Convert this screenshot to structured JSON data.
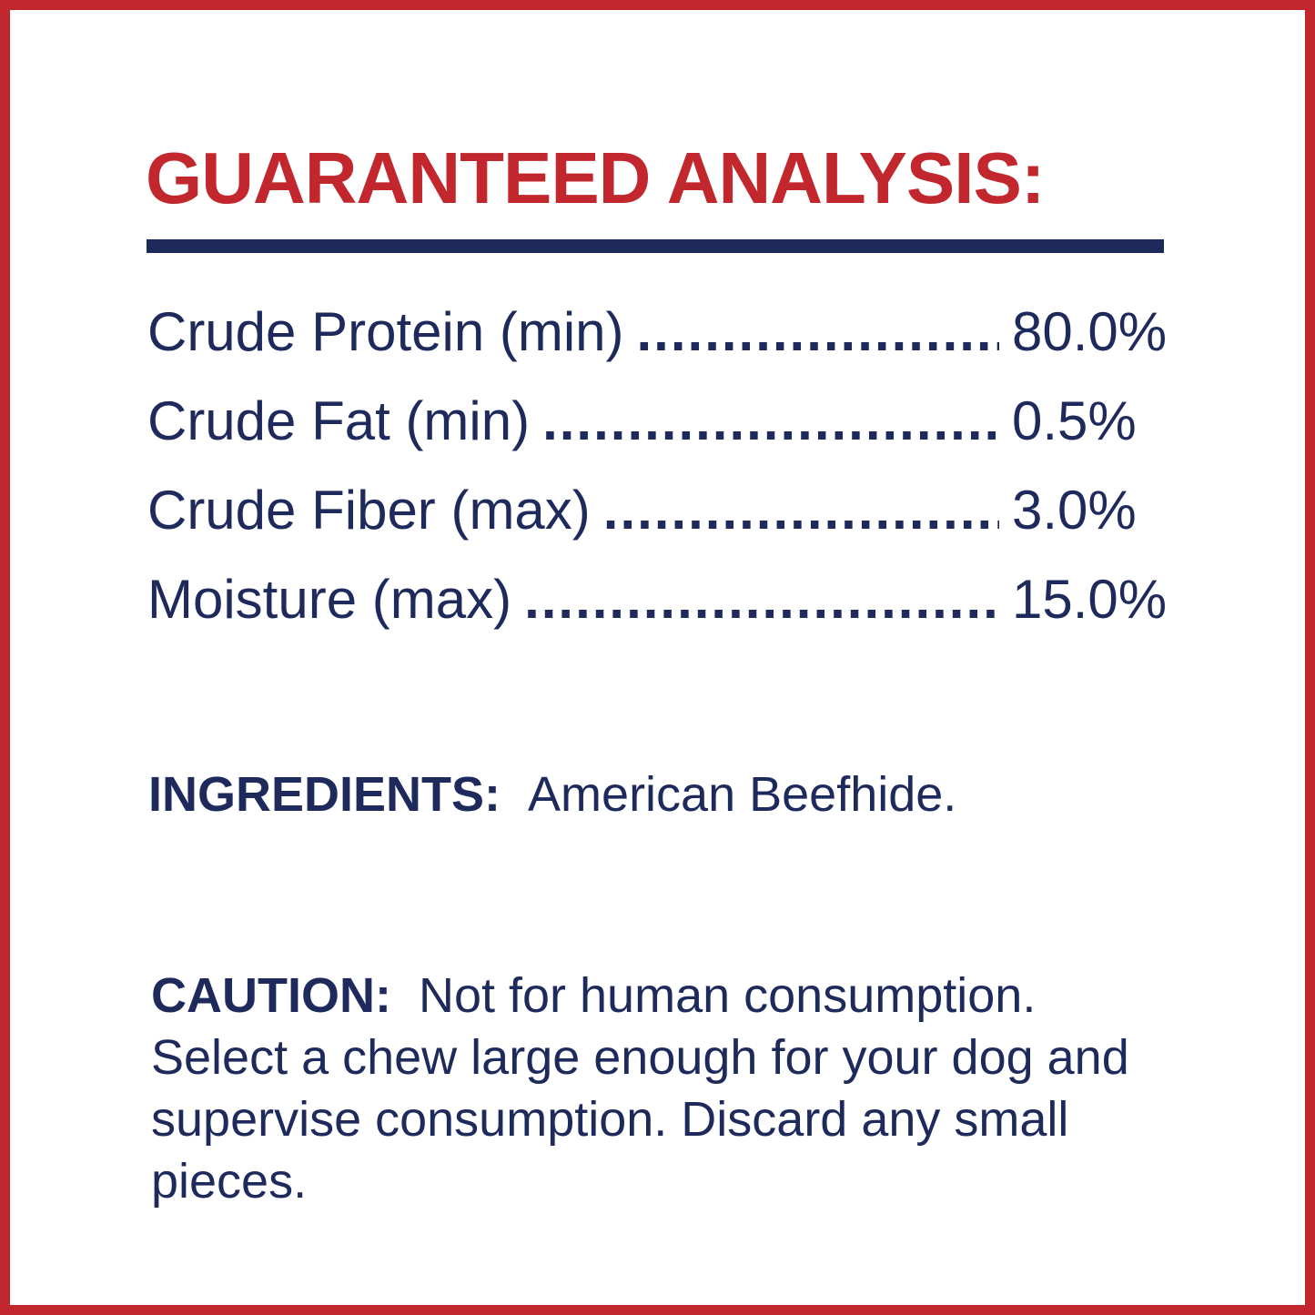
{
  "title": "GUARANTEED ANALYSIS:",
  "analysis": [
    {
      "label": "Crude Protein (min)",
      "value": "80.0%"
    },
    {
      "label": "Crude Fat (min)",
      "value": "0.5%"
    },
    {
      "label": "Crude Fiber (max)",
      "value": "3.0%"
    },
    {
      "label": "Moisture (max)",
      "value": "15.0%"
    }
  ],
  "ingredients": {
    "heading": "INGREDIENTS:",
    "text": "American Beefhide."
  },
  "caution": {
    "heading": "CAUTION:",
    "text": "Not for human consumption. Select a chew large enough for your dog and supervise consumption. Discard any small pieces."
  },
  "colors": {
    "border": "#c1272d",
    "title": "#c1272d",
    "text": "#1f2a5c"
  }
}
